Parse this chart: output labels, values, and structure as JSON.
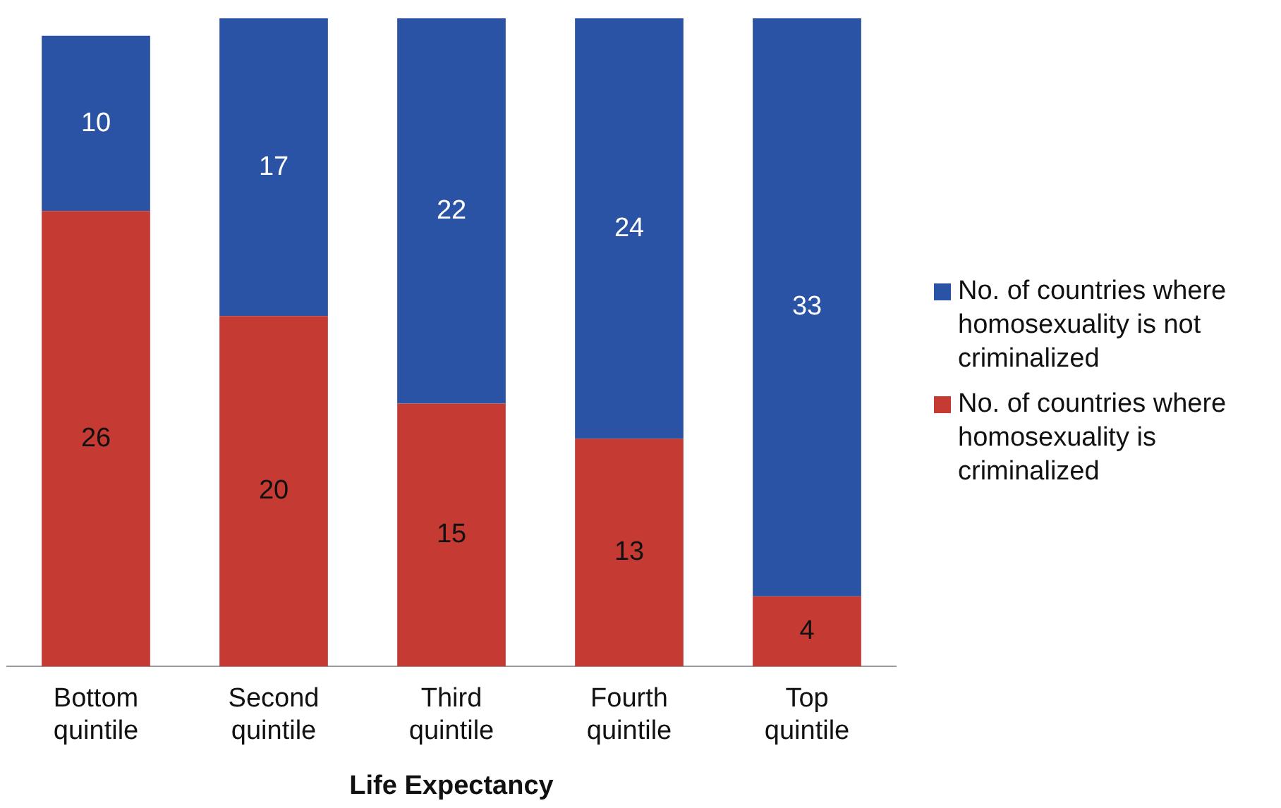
{
  "chart_data": {
    "type": "bar",
    "stacked": true,
    "xlabel": "Life Expectancy",
    "categories": [
      "Bottom quintile",
      "Second quintile",
      "Third quintile",
      "Fourth quintile",
      "Top quintile"
    ],
    "series": [
      {
        "name": "No. of countries where homosexuality is criminalized",
        "color": "#c53a32",
        "values": [
          26,
          20,
          15,
          13,
          4
        ]
      },
      {
        "name": "No. of countries where homosexuality is not criminalized",
        "color": "#2a52a5",
        "values": [
          10,
          17,
          22,
          24,
          33
        ]
      }
    ],
    "data_labels": true,
    "legend": "right",
    "grid": false
  }
}
